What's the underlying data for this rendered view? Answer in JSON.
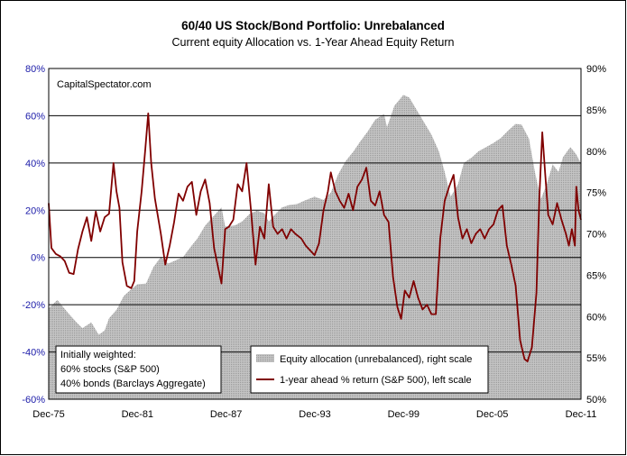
{
  "chart_data": {
    "type": "line",
    "title": "60/40 US Stock/Bond Portfolio: Unrebalanced",
    "subtitle": "Current equity Allocation vs. 1-Year Ahead Equity Return",
    "watermark": "CapitalSpectator.com",
    "x_tick_labels": [
      "Dec-75",
      "Dec-81",
      "Dec-87",
      "Dec-93",
      "Dec-99",
      "Dec-05",
      "Dec-11"
    ],
    "x_range": [
      1975.917,
      2011.917
    ],
    "y_left": {
      "range": [
        -60,
        80
      ],
      "tick_labels": [
        "-60%",
        "-40%",
        "-20%",
        "0%",
        "20%",
        "40%",
        "60%",
        "80%"
      ],
      "color": "#1a1aa8"
    },
    "y_right": {
      "range": [
        50,
        90
      ],
      "tick_labels": [
        "50%",
        "55%",
        "60%",
        "65%",
        "70%",
        "75%",
        "80%",
        "85%",
        "90%"
      ]
    },
    "grid": "horizontal",
    "legend_position": "bottom-right",
    "notes": {
      "line1": "Initially weighted:",
      "line2": "60% stocks (S&P 500)",
      "line3": "40% bonds (Barclays Aggregate)"
    },
    "colors": {
      "area": "#c0c0c0",
      "line": "#800000",
      "left_axis_text": "#1a1aa8",
      "grid": "#000000"
    },
    "series": [
      {
        "name": "Equity allocation (unrebalanced), right scale",
        "type": "area",
        "axis": "right",
        "points": [
          [
            1975.917,
            61.0
          ],
          [
            1976.5,
            62.0
          ],
          [
            1977.2,
            60.5
          ],
          [
            1977.8,
            59.3
          ],
          [
            1978.2,
            58.6
          ],
          [
            1978.8,
            59.3
          ],
          [
            1979.3,
            57.8
          ],
          [
            1979.7,
            58.3
          ],
          [
            1980.0,
            59.8
          ],
          [
            1980.5,
            60.8
          ],
          [
            1981.0,
            62.5
          ],
          [
            1981.5,
            63.3
          ],
          [
            1981.9,
            63.9
          ],
          [
            1982.5,
            64.0
          ],
          [
            1983.0,
            66.0
          ],
          [
            1983.5,
            67.2
          ],
          [
            1984.0,
            66.4
          ],
          [
            1984.5,
            66.8
          ],
          [
            1985.0,
            67.2
          ],
          [
            1985.5,
            68.4
          ],
          [
            1986.0,
            69.5
          ],
          [
            1986.5,
            71.0
          ],
          [
            1987.0,
            72.0
          ],
          [
            1987.6,
            73.2
          ],
          [
            1987.85,
            70.9
          ],
          [
            1988.5,
            71.0
          ],
          [
            1989.0,
            71.5
          ],
          [
            1989.5,
            72.4
          ],
          [
            1990.0,
            72.8
          ],
          [
            1990.5,
            72.5
          ],
          [
            1990.8,
            71.5
          ],
          [
            1991.2,
            72.3
          ],
          [
            1991.7,
            73.2
          ],
          [
            1992.2,
            73.5
          ],
          [
            1992.7,
            73.6
          ],
          [
            1993.2,
            74.0
          ],
          [
            1993.9,
            74.5
          ],
          [
            1994.5,
            74.1
          ],
          [
            1995.0,
            75.0
          ],
          [
            1995.5,
            77.2
          ],
          [
            1996.0,
            78.8
          ],
          [
            1996.5,
            79.9
          ],
          [
            1997.0,
            81.2
          ],
          [
            1997.5,
            82.4
          ],
          [
            1998.0,
            83.8
          ],
          [
            1998.6,
            84.5
          ],
          [
            1998.8,
            82.9
          ],
          [
            1999.3,
            85.5
          ],
          [
            1999.9,
            86.8
          ],
          [
            2000.3,
            86.5
          ],
          [
            2000.8,
            85.0
          ],
          [
            2001.3,
            83.5
          ],
          [
            2001.8,
            82.0
          ],
          [
            2002.3,
            80.0
          ],
          [
            2002.7,
            77.5
          ],
          [
            2003.1,
            74.5
          ],
          [
            2003.6,
            76.0
          ],
          [
            2004.0,
            78.6
          ],
          [
            2004.5,
            79.2
          ],
          [
            2005.0,
            80.0
          ],
          [
            2005.5,
            80.5
          ],
          [
            2006.0,
            81.0
          ],
          [
            2006.5,
            81.6
          ],
          [
            2007.0,
            82.5
          ],
          [
            2007.5,
            83.3
          ],
          [
            2007.9,
            83.2
          ],
          [
            2008.4,
            81.5
          ],
          [
            2008.8,
            77.5
          ],
          [
            2009.2,
            74.2
          ],
          [
            2009.6,
            76.0
          ],
          [
            2010.0,
            78.4
          ],
          [
            2010.4,
            77.5
          ],
          [
            2010.7,
            79.3
          ],
          [
            2011.2,
            80.5
          ],
          [
            2011.6,
            79.6
          ],
          [
            2011.917,
            78.5
          ]
        ]
      },
      {
        "name": "1-year ahead % return (S&P 500), left scale",
        "type": "line",
        "axis": "left",
        "points": [
          [
            1975.917,
            23.0
          ],
          [
            1976.1,
            4.0
          ],
          [
            1976.4,
            1.5
          ],
          [
            1976.7,
            0.5
          ],
          [
            1977.0,
            -1.5
          ],
          [
            1977.3,
            -6.5
          ],
          [
            1977.6,
            -7.0
          ],
          [
            1977.9,
            3.5
          ],
          [
            1978.2,
            11.0
          ],
          [
            1978.5,
            17.0
          ],
          [
            1978.8,
            7.0
          ],
          [
            1979.1,
            19.5
          ],
          [
            1979.4,
            11.0
          ],
          [
            1979.7,
            17.0
          ],
          [
            1980.0,
            18.5
          ],
          [
            1980.3,
            40.0
          ],
          [
            1980.5,
            28.0
          ],
          [
            1980.7,
            21.0
          ],
          [
            1980.9,
            -2.0
          ],
          [
            1981.2,
            -12.0
          ],
          [
            1981.5,
            -13.0
          ],
          [
            1981.7,
            -10.0
          ],
          [
            1981.9,
            11.0
          ],
          [
            1982.2,
            28.0
          ],
          [
            1982.45,
            46.0
          ],
          [
            1982.65,
            61.0
          ],
          [
            1982.85,
            40.0
          ],
          [
            1983.1,
            25.0
          ],
          [
            1983.5,
            10.0
          ],
          [
            1983.8,
            -3.0
          ],
          [
            1984.1,
            5.0
          ],
          [
            1984.4,
            15.0
          ],
          [
            1984.7,
            27.0
          ],
          [
            1985.0,
            24.0
          ],
          [
            1985.3,
            30.0
          ],
          [
            1985.6,
            32.0
          ],
          [
            1985.9,
            18.0
          ],
          [
            1986.2,
            28.0
          ],
          [
            1986.5,
            33.0
          ],
          [
            1986.8,
            23.0
          ],
          [
            1987.1,
            4.0
          ],
          [
            1987.4,
            -5.0
          ],
          [
            1987.6,
            -11.0
          ],
          [
            1987.85,
            12.0
          ],
          [
            1988.1,
            13.0
          ],
          [
            1988.4,
            16.0
          ],
          [
            1988.7,
            31.0
          ],
          [
            1989.0,
            28.0
          ],
          [
            1989.3,
            40.0
          ],
          [
            1989.6,
            20.0
          ],
          [
            1989.9,
            -3.0
          ],
          [
            1990.2,
            13.0
          ],
          [
            1990.5,
            8.0
          ],
          [
            1990.8,
            31.0
          ],
          [
            1991.1,
            13.0
          ],
          [
            1991.4,
            10.0
          ],
          [
            1991.7,
            12.0
          ],
          [
            1992.0,
            8.0
          ],
          [
            1992.3,
            12.0
          ],
          [
            1992.6,
            10.0
          ],
          [
            1993.0,
            8.0
          ],
          [
            1993.3,
            5.0
          ],
          [
            1993.6,
            3.0
          ],
          [
            1993.9,
            1.0
          ],
          [
            1994.2,
            6.0
          ],
          [
            1994.5,
            20.0
          ],
          [
            1994.8,
            28.0
          ],
          [
            1995.0,
            36.0
          ],
          [
            1995.3,
            28.0
          ],
          [
            1995.6,
            24.0
          ],
          [
            1995.9,
            21.0
          ],
          [
            1996.2,
            27.0
          ],
          [
            1996.5,
            20.0
          ],
          [
            1996.8,
            30.0
          ],
          [
            1997.1,
            33.0
          ],
          [
            1997.4,
            38.0
          ],
          [
            1997.7,
            24.0
          ],
          [
            1998.0,
            22.0
          ],
          [
            1998.3,
            28.0
          ],
          [
            1998.6,
            18.0
          ],
          [
            1998.9,
            15.0
          ],
          [
            1999.2,
            -8.0
          ],
          [
            1999.5,
            -21.0
          ],
          [
            1999.75,
            -26.0
          ],
          [
            2000.0,
            -14.0
          ],
          [
            2000.3,
            -17.0
          ],
          [
            2000.6,
            -10.0
          ],
          [
            2000.9,
            -17.0
          ],
          [
            2001.2,
            -22.0
          ],
          [
            2001.5,
            -20.0
          ],
          [
            2001.8,
            -24.0
          ],
          [
            2002.1,
            -24.0
          ],
          [
            2002.4,
            8.0
          ],
          [
            2002.7,
            24.0
          ],
          [
            2003.0,
            30.0
          ],
          [
            2003.3,
            35.0
          ],
          [
            2003.6,
            17.0
          ],
          [
            2003.9,
            8.0
          ],
          [
            2004.2,
            12.0
          ],
          [
            2004.5,
            6.0
          ],
          [
            2004.8,
            10.0
          ],
          [
            2005.1,
            12.0
          ],
          [
            2005.4,
            8.0
          ],
          [
            2005.7,
            12.0
          ],
          [
            2006.0,
            14.0
          ],
          [
            2006.3,
            20.0
          ],
          [
            2006.6,
            22.0
          ],
          [
            2006.9,
            5.0
          ],
          [
            2007.2,
            -3.0
          ],
          [
            2007.5,
            -12.0
          ],
          [
            2007.8,
            -35.0
          ],
          [
            2008.1,
            -43.0
          ],
          [
            2008.3,
            -44.0
          ],
          [
            2008.6,
            -38.0
          ],
          [
            2008.9,
            -15.0
          ],
          [
            2009.1,
            25.0
          ],
          [
            2009.3,
            53.0
          ],
          [
            2009.5,
            35.0
          ],
          [
            2009.7,
            18.0
          ],
          [
            2010.0,
            14.0
          ],
          [
            2010.3,
            23.0
          ],
          [
            2010.6,
            16.0
          ],
          [
            2010.9,
            10.0
          ],
          [
            2011.1,
            5.0
          ],
          [
            2011.3,
            12.0
          ],
          [
            2011.5,
            5.0
          ],
          [
            2011.6,
            30.0
          ],
          [
            2011.75,
            20.0
          ],
          [
            2011.917,
            16.0
          ]
        ]
      }
    ]
  }
}
